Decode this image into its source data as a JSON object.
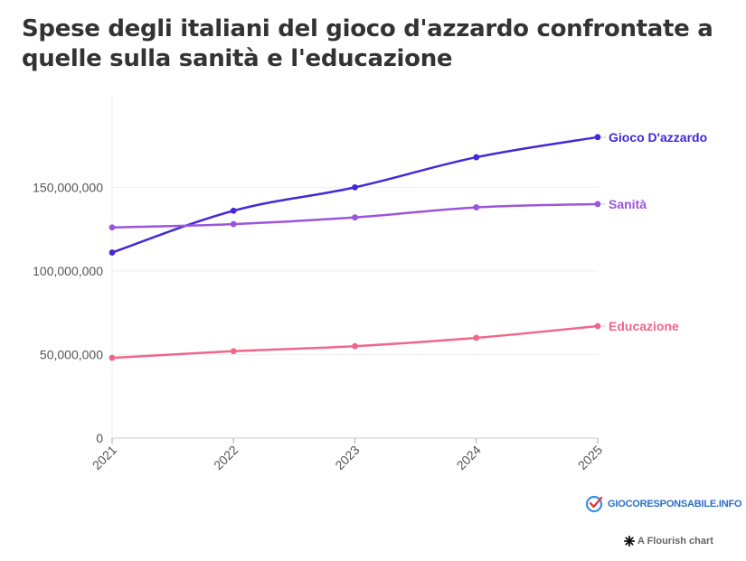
{
  "title": "Spese degli italiani del gioco d'azzardo confrontate a quelle sulla sanità e l'educazione",
  "chart_data": {
    "type": "line",
    "x": [
      "2021",
      "2022",
      "2023",
      "2024",
      "2025"
    ],
    "ylim": [
      0,
      180000000
    ],
    "yticks": [
      {
        "value": 0,
        "label": "0"
      },
      {
        "value": 50000000,
        "label": "50,000,000"
      },
      {
        "value": 100000000,
        "label": "100,000,000"
      },
      {
        "value": 150000000,
        "label": "150,000,000"
      }
    ],
    "grid": true,
    "legend": "direct labels at right end of lines",
    "series": [
      {
        "name": "Gioco D'azzardo",
        "color": "#4329d8",
        "values": [
          111000000,
          136000000,
          150000000,
          168000000,
          180000000
        ]
      },
      {
        "name": "Sanità",
        "color": "#9b55db",
        "values": [
          126000000,
          128000000,
          132000000,
          138000000,
          140000000
        ]
      },
      {
        "name": "Educazione",
        "color": "#f0668a",
        "values": [
          48000000,
          52000000,
          55000000,
          60000000,
          67000000
        ]
      }
    ]
  },
  "logo": {
    "text": "GIOCORESPONSABILE.INFO",
    "icon": "giocoresponsabile-logo-icon"
  },
  "credit": {
    "text": "A Flourish chart",
    "icon": "flourish-asterisk-icon"
  }
}
